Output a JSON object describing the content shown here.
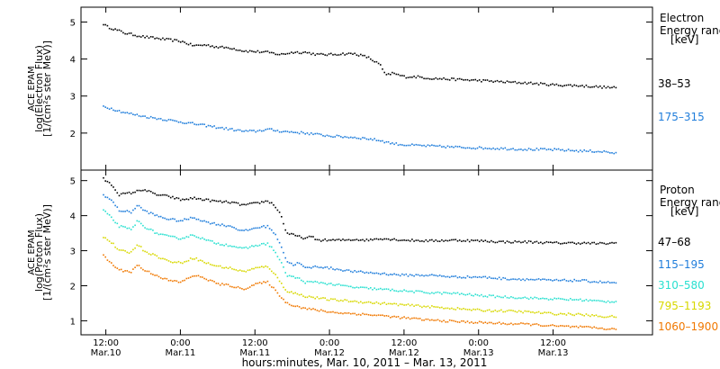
{
  "chart_data": [
    {
      "type": "scatter",
      "panel": "electron",
      "ylabel": [
        "ACE EPAM",
        "log(Electron Flux)",
        "[1/(cm²s ster MeV)]"
      ],
      "ylim": [
        1,
        5.4
      ],
      "yticks": [
        2,
        3,
        4,
        5
      ],
      "legend_title": [
        "Electron",
        "Energy range",
        "[keV]"
      ],
      "series": [
        {
          "name": "38–53",
          "color": "#000000",
          "points": [
            [
              -0.5,
              4.95
            ],
            [
              0,
              4.88
            ],
            [
              3,
              4.7
            ],
            [
              6,
              4.6
            ],
            [
              10,
              4.52
            ],
            [
              12,
              4.48
            ],
            [
              14,
              4.36
            ],
            [
              16,
              4.38
            ],
            [
              18,
              4.32
            ],
            [
              20,
              4.3
            ],
            [
              22,
              4.22
            ],
            [
              24,
              4.2
            ],
            [
              26,
              4.18
            ],
            [
              28,
              4.12
            ],
            [
              30,
              4.18
            ],
            [
              32,
              4.18
            ],
            [
              34,
              4.12
            ],
            [
              36,
              4.12
            ],
            [
              38,
              4.14
            ],
            [
              40,
              4.14
            ],
            [
              42,
              4.05
            ],
            [
              44,
              3.85
            ],
            [
              45,
              3.55
            ],
            [
              46,
              3.62
            ],
            [
              48,
              3.52
            ],
            [
              50,
              3.52
            ],
            [
              52,
              3.48
            ],
            [
              56,
              3.45
            ],
            [
              60,
              3.42
            ],
            [
              64,
              3.38
            ],
            [
              68,
              3.35
            ],
            [
              72,
              3.3
            ],
            [
              76,
              3.28
            ],
            [
              80,
              3.24
            ],
            [
              82,
              3.22
            ]
          ]
        },
        {
          "name": "175–315",
          "color": "#1f7ddb",
          "points": [
            [
              -0.5,
              2.72
            ],
            [
              1,
              2.65
            ],
            [
              3,
              2.55
            ],
            [
              6,
              2.45
            ],
            [
              10,
              2.35
            ],
            [
              14,
              2.25
            ],
            [
              18,
              2.15
            ],
            [
              22,
              2.05
            ],
            [
              24,
              2.05
            ],
            [
              26,
              2.1
            ],
            [
              28,
              2.05
            ],
            [
              32,
              2.0
            ],
            [
              36,
              1.92
            ],
            [
              40,
              1.88
            ],
            [
              42,
              1.85
            ],
            [
              44,
              1.8
            ],
            [
              46,
              1.72
            ],
            [
              48,
              1.68
            ],
            [
              52,
              1.65
            ],
            [
              56,
              1.62
            ],
            [
              60,
              1.6
            ],
            [
              64,
              1.58
            ],
            [
              68,
              1.56
            ],
            [
              72,
              1.55
            ],
            [
              76,
              1.52
            ],
            [
              80,
              1.5
            ],
            [
              82,
              1.45
            ]
          ]
        }
      ]
    },
    {
      "type": "scatter",
      "panel": "proton",
      "ylabel": [
        "ACE EPAM",
        "log(Proton Flux)",
        "[1/(cm²s ster MeV)]"
      ],
      "ylim": [
        0.6,
        5.3
      ],
      "yticks": [
        1,
        2,
        3,
        4,
        5
      ],
      "xlabel": "hours:minutes, Mar. 10, 2011 – Mar. 13, 2011",
      "xlim": [
        -4,
        88
      ],
      "xticks": [
        {
          "x": 0,
          "time": "12:00",
          "date": "Mar.10"
        },
        {
          "x": 12,
          "time": "0:00",
          "date": "Mar.11"
        },
        {
          "x": 24,
          "time": "12:00",
          "date": "Mar.11"
        },
        {
          "x": 36,
          "time": "0:00",
          "date": "Mar.12"
        },
        {
          "x": 48,
          "time": "12:00",
          "date": "Mar.12"
        },
        {
          "x": 60,
          "time": "0:00",
          "date": "Mar.13"
        },
        {
          "x": 72,
          "time": "12:00",
          "date": "Mar.13"
        }
      ],
      "legend_title": [
        "Proton",
        "Energy range",
        "[keV]"
      ],
      "series": [
        {
          "name": "47–68",
          "color": "#000000",
          "points": [
            [
              -0.5,
              5.05
            ],
            [
              1,
              4.85
            ],
            [
              2,
              4.6
            ],
            [
              4,
              4.65
            ],
            [
              6,
              4.75
            ],
            [
              8,
              4.6
            ],
            [
              10,
              4.55
            ],
            [
              12,
              4.45
            ],
            [
              14,
              4.5
            ],
            [
              16,
              4.45
            ],
            [
              18,
              4.4
            ],
            [
              20,
              4.38
            ],
            [
              22,
              4.3
            ],
            [
              24,
              4.35
            ],
            [
              26,
              4.42
            ],
            [
              27,
              4.3
            ],
            [
              28,
              4.05
            ],
            [
              29,
              3.5
            ],
            [
              30,
              3.45
            ],
            [
              31,
              3.4
            ],
            [
              32,
              3.35
            ],
            [
              33,
              3.4
            ],
            [
              34,
              3.3
            ],
            [
              36,
              3.3
            ],
            [
              38,
              3.3
            ],
            [
              40,
              3.32
            ],
            [
              42,
              3.3
            ],
            [
              44,
              3.35
            ],
            [
              48,
              3.3
            ],
            [
              52,
              3.28
            ],
            [
              56,
              3.3
            ],
            [
              60,
              3.28
            ],
            [
              64,
              3.25
            ],
            [
              68,
              3.25
            ],
            [
              72,
              3.22
            ],
            [
              76,
              3.22
            ],
            [
              80,
              3.2
            ],
            [
              82,
              3.22
            ]
          ]
        },
        {
          "name": "115–195",
          "color": "#1f7ddb",
          "points": [
            [
              -0.5,
              4.6
            ],
            [
              1,
              4.4
            ],
            [
              2,
              4.15
            ],
            [
              4,
              4.1
            ],
            [
              5,
              4.3
            ],
            [
              6,
              4.15
            ],
            [
              8,
              4.0
            ],
            [
              10,
              3.9
            ],
            [
              12,
              3.85
            ],
            [
              14,
              3.95
            ],
            [
              16,
              3.82
            ],
            [
              18,
              3.75
            ],
            [
              20,
              3.7
            ],
            [
              22,
              3.55
            ],
            [
              24,
              3.65
            ],
            [
              26,
              3.7
            ],
            [
              27,
              3.5
            ],
            [
              28,
              3.2
            ],
            [
              29,
              2.7
            ],
            [
              30,
              2.6
            ],
            [
              31,
              2.65
            ],
            [
              32,
              2.5
            ],
            [
              34,
              2.55
            ],
            [
              36,
              2.5
            ],
            [
              38,
              2.45
            ],
            [
              40,
              2.4
            ],
            [
              44,
              2.35
            ],
            [
              48,
              2.3
            ],
            [
              52,
              2.3
            ],
            [
              56,
              2.25
            ],
            [
              60,
              2.25
            ],
            [
              64,
              2.2
            ],
            [
              68,
              2.18
            ],
            [
              72,
              2.15
            ],
            [
              76,
              2.15
            ],
            [
              80,
              2.1
            ],
            [
              82,
              2.08
            ]
          ]
        },
        {
          "name": "310–580",
          "color": "#29e0d0",
          "points": [
            [
              -0.5,
              4.15
            ],
            [
              1,
              3.9
            ],
            [
              2,
              3.7
            ],
            [
              4,
              3.6
            ],
            [
              5,
              3.85
            ],
            [
              6,
              3.7
            ],
            [
              8,
              3.5
            ],
            [
              10,
              3.4
            ],
            [
              12,
              3.35
            ],
            [
              14,
              3.45
            ],
            [
              16,
              3.3
            ],
            [
              18,
              3.2
            ],
            [
              20,
              3.15
            ],
            [
              22,
              3.05
            ],
            [
              24,
              3.15
            ],
            [
              26,
              3.2
            ],
            [
              27,
              3.0
            ],
            [
              28,
              2.7
            ],
            [
              29,
              2.3
            ],
            [
              30,
              2.25
            ],
            [
              31,
              2.2
            ],
            [
              32,
              2.1
            ],
            [
              34,
              2.1
            ],
            [
              36,
              2.05
            ],
            [
              38,
              2.0
            ],
            [
              40,
              1.95
            ],
            [
              44,
              1.9
            ],
            [
              48,
              1.85
            ],
            [
              52,
              1.8
            ],
            [
              56,
              1.78
            ],
            [
              60,
              1.72
            ],
            [
              64,
              1.68
            ],
            [
              68,
              1.65
            ],
            [
              72,
              1.62
            ],
            [
              76,
              1.6
            ],
            [
              80,
              1.55
            ],
            [
              82,
              1.55
            ]
          ]
        },
        {
          "name": "795–1193",
          "color": "#d8d800",
          "points": [
            [
              -0.5,
              3.4
            ],
            [
              1,
              3.2
            ],
            [
              2,
              3.0
            ],
            [
              4,
              2.95
            ],
            [
              5,
              3.2
            ],
            [
              6,
              3.0
            ],
            [
              8,
              2.85
            ],
            [
              10,
              2.7
            ],
            [
              12,
              2.65
            ],
            [
              14,
              2.8
            ],
            [
              16,
              2.65
            ],
            [
              18,
              2.55
            ],
            [
              20,
              2.5
            ],
            [
              22,
              2.4
            ],
            [
              24,
              2.5
            ],
            [
              26,
              2.55
            ],
            [
              27,
              2.35
            ],
            [
              28,
              2.1
            ],
            [
              29,
              1.85
            ],
            [
              30,
              1.8
            ],
            [
              31,
              1.75
            ],
            [
              32,
              1.7
            ],
            [
              34,
              1.65
            ],
            [
              36,
              1.6
            ],
            [
              38,
              1.58
            ],
            [
              40,
              1.55
            ],
            [
              44,
              1.5
            ],
            [
              48,
              1.45
            ],
            [
              52,
              1.4
            ],
            [
              56,
              1.35
            ],
            [
              60,
              1.3
            ],
            [
              64,
              1.28
            ],
            [
              68,
              1.25
            ],
            [
              72,
              1.2
            ],
            [
              76,
              1.18
            ],
            [
              80,
              1.12
            ],
            [
              82,
              1.12
            ]
          ]
        },
        {
          "name": "1060–1900",
          "color": "#f07800",
          "points": [
            [
              -0.5,
              2.85
            ],
            [
              1,
              2.6
            ],
            [
              2,
              2.45
            ],
            [
              4,
              2.4
            ],
            [
              5,
              2.6
            ],
            [
              6,
              2.45
            ],
            [
              8,
              2.3
            ],
            [
              10,
              2.15
            ],
            [
              12,
              2.1
            ],
            [
              14,
              2.3
            ],
            [
              16,
              2.2
            ],
            [
              18,
              2.05
            ],
            [
              20,
              2.0
            ],
            [
              22,
              1.9
            ],
            [
              24,
              2.05
            ],
            [
              26,
              2.1
            ],
            [
              27,
              1.9
            ],
            [
              28,
              1.7
            ],
            [
              29,
              1.5
            ],
            [
              30,
              1.45
            ],
            [
              31,
              1.4
            ],
            [
              32,
              1.35
            ],
            [
              34,
              1.3
            ],
            [
              36,
              1.25
            ],
            [
              38,
              1.22
            ],
            [
              40,
              1.2
            ],
            [
              44,
              1.15
            ],
            [
              48,
              1.08
            ],
            [
              52,
              1.02
            ],
            [
              56,
              0.98
            ],
            [
              60,
              0.95
            ],
            [
              64,
              0.92
            ],
            [
              68,
              0.9
            ],
            [
              72,
              0.85
            ],
            [
              76,
              0.82
            ],
            [
              80,
              0.78
            ],
            [
              82,
              0.75
            ]
          ]
        }
      ]
    }
  ]
}
